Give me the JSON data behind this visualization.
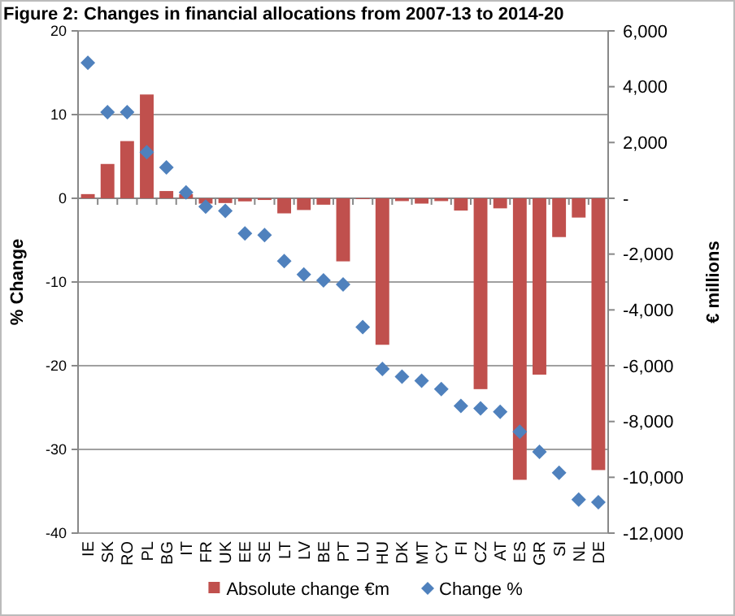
{
  "chart_data": {
    "type": "bar",
    "title": "Figure 2: Changes in financial allocations from 2007-13 to 2014-20",
    "ylabel": "% Change",
    "y2label": "€ millions",
    "categories": [
      "IE",
      "SK",
      "RO",
      "PL",
      "BG",
      "IT",
      "FR",
      "UK",
      "EE",
      "SE",
      "LT",
      "LV",
      "BE",
      "PT",
      "LU",
      "HU",
      "DK",
      "MT",
      "CY",
      "FI",
      "CZ",
      "AT",
      "ES",
      "GR",
      "SI",
      "NL",
      "DE"
    ],
    "series": [
      {
        "name": "Absolute change €m",
        "axis": "y2",
        "color": "#c0504d",
        "values": [
          150,
          1230,
          2050,
          3720,
          260,
          150,
          -190,
          -170,
          -110,
          -60,
          -540,
          -420,
          -230,
          -2260,
          -30,
          -5250,
          -100,
          -190,
          -100,
          -440,
          -6840,
          -360,
          -10090,
          -6320,
          -1390,
          -690,
          -9740
        ]
      },
      {
        "name": "Change %",
        "type": "scatter",
        "marker": "diamond",
        "color": "#4f81bd",
        "values": [
          16.2,
          10.3,
          10.3,
          5.5,
          3.7,
          0.7,
          -1.0,
          -1.5,
          -4.2,
          -4.4,
          -7.5,
          -9.1,
          -9.8,
          -10.3,
          -15.4,
          -20.4,
          -21.3,
          -21.8,
          -22.8,
          -24.8,
          -25.1,
          -25.5,
          -27.9,
          -30.3,
          -32.8,
          -36,
          -36.3
        ]
      }
    ],
    "ylim": [
      -40,
      20
    ],
    "yticks": [
      -40,
      -30,
      -20,
      -10,
      0,
      10,
      20
    ],
    "y2lim": [
      -12000,
      6000
    ],
    "y2ticks": [
      {
        "value": -12000,
        "label": "-12,000"
      },
      {
        "value": -10000,
        "label": "-10,000"
      },
      {
        "value": -8000,
        "label": "-8,000"
      },
      {
        "value": -6000,
        "label": "-6,000"
      },
      {
        "value": -4000,
        "label": "-4,000"
      },
      {
        "value": -2000,
        "label": "-2,000"
      },
      {
        "value": 0,
        "label": "-"
      },
      {
        "value": 2000,
        "label": "2,000"
      },
      {
        "value": 4000,
        "label": "4,000"
      },
      {
        "value": 6000,
        "label": "6,000"
      }
    ],
    "grid": "y",
    "legend": "bottom"
  }
}
